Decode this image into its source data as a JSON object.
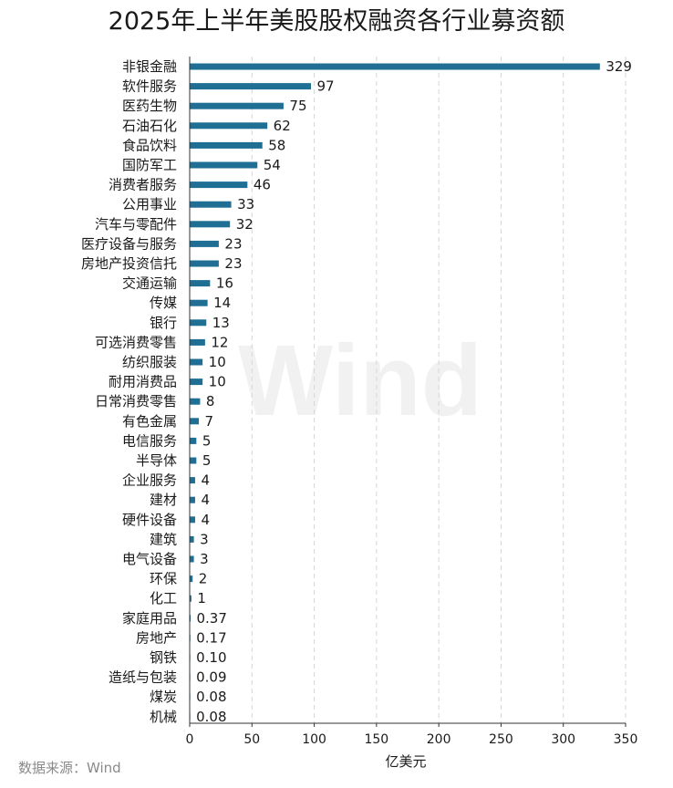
{
  "chart_data": {
    "type": "bar",
    "orientation": "horizontal",
    "title": "2025年上半年美股股权融资各行业募资额",
    "xlabel": "亿美元",
    "ylabel": "",
    "xlim": [
      0,
      350
    ],
    "xticks": [
      0,
      50,
      100,
      150,
      200,
      250,
      300,
      350
    ],
    "grid": "vertical-dashed",
    "categories": [
      "非银金融",
      "软件服务",
      "医药生物",
      "石油石化",
      "食品饮料",
      "国防军工",
      "消费者服务",
      "公用事业",
      "汽车与零配件",
      "医疗设备与服务",
      "房地产投资信托",
      "交通运输",
      "传媒",
      "银行",
      "可选消费零售",
      "纺织服装",
      "耐用消费品",
      "日常消费零售",
      "有色金属",
      "电信服务",
      "半导体",
      "企业服务",
      "建材",
      "硬件设备",
      "建筑",
      "电气设备",
      "环保",
      "化工",
      "家庭用品",
      "房地产",
      "钢铁",
      "造纸与包装",
      "煤炭",
      "机械"
    ],
    "values": [
      329,
      97,
      75,
      62,
      58,
      54,
      46,
      33,
      32,
      23,
      23,
      16,
      14,
      13,
      12,
      10,
      10,
      8,
      7,
      5,
      5,
      4,
      4,
      4,
      3,
      3,
      2,
      1,
      0.37,
      0.17,
      0.1,
      0.09,
      0.08,
      0.08
    ],
    "value_labels": [
      "329",
      "97",
      "75",
      "62",
      "58",
      "54",
      "46",
      "33",
      "32",
      "23",
      "23",
      "16",
      "14",
      "13",
      "12",
      "10",
      "10",
      "8",
      "7",
      "5",
      "5",
      "4",
      "4",
      "4",
      "3",
      "3",
      "2",
      "1",
      "0.37",
      "0.17",
      "0.10",
      "0.09",
      "0.08",
      "0.08"
    ],
    "bar_color": "#1f6f94",
    "source": "数据来源：Wind",
    "watermark": "Wind"
  }
}
